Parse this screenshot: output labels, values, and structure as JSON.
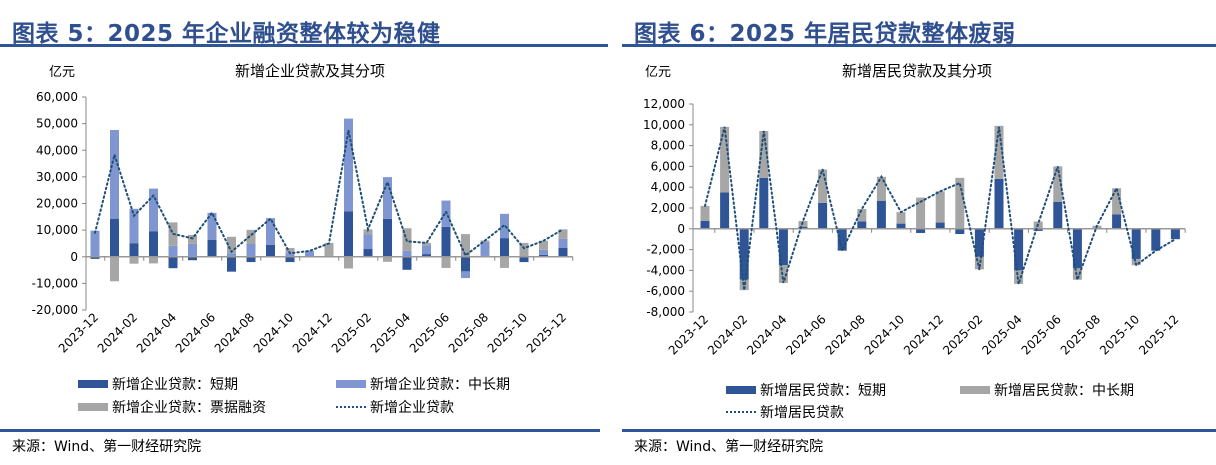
{
  "colors": {
    "short": "#2f5597",
    "mid": "#7f96d0",
    "bill": "#a6a6a6",
    "line": "#1f4e79",
    "title": "#2f4f8f"
  },
  "left": {
    "title": "图表 5：2025 年企业融资整体较为稳健",
    "source": "来源：Wind、第一财经研究院",
    "legend": [
      "新增企业贷款：短期",
      "新增企业贷款：中长期",
      "新增企业贷款：票据融资",
      "新增企业贷款"
    ]
  },
  "right": {
    "title": "图表 6：2025 年居民贷款整体疲弱",
    "source": "来源：Wind、第一财经研究院",
    "legend": [
      "新增居民贷款：短期",
      "新增居民贷款：中长期",
      "新增居民贷款"
    ]
  },
  "chart_data": [
    {
      "type": "bar",
      "stacked": true,
      "title": "新增企业贷款及其分项",
      "ylabel": "亿元",
      "ylim": [
        -20000,
        60000
      ],
      "yticks": [
        -20000,
        -10000,
        0,
        10000,
        20000,
        30000,
        40000,
        50000,
        60000
      ],
      "ytick_labels": [
        "-20,000",
        "-10,000",
        "0",
        "10,000",
        "20,000",
        "30,000",
        "40,000",
        "50,000",
        "60,000"
      ],
      "x": [
        "2023-12",
        "2024-01",
        "2024-02",
        "2024-03",
        "2024-04",
        "2024-05",
        "2024-06",
        "2024-07",
        "2024-08",
        "2024-09",
        "2024-10",
        "2024-11",
        "2024-12",
        "2025-01",
        "2025-02",
        "2025-03",
        "2025-04",
        "2025-05",
        "2025-06",
        "2025-07",
        "2025-08",
        "2025-09",
        "2025-10",
        "2025-11",
        "2025-12"
      ],
      "xtick_labels": [
        "2023-12",
        "2024-02",
        "2024-04",
        "2024-06",
        "2024-08",
        "2024-10",
        "2024-12",
        "2025-02",
        "2025-04",
        "2025-06",
        "2025-08",
        "2025-10",
        "2025-12"
      ],
      "legend_position": "bottom",
      "series": [
        {
          "name": "新增企业贷款：短期",
          "kind": "bar",
          "values": [
            -800,
            14300,
            5100,
            9600,
            -4300,
            -1300,
            6300,
            -5600,
            -2000,
            4500,
            -2000,
            0,
            300,
            17100,
            2900,
            14200,
            -4900,
            1000,
            11200,
            -5500,
            300,
            7000,
            -2000,
            700,
            3400
          ]
        },
        {
          "name": "新增企业贷款：中长期",
          "kind": "bar",
          "values": [
            9800,
            33300,
            12900,
            16000,
            4100,
            4900,
            10200,
            1200,
            4800,
            10000,
            1300,
            2200,
            0,
            34800,
            5600,
            15700,
            2200,
            3200,
            9900,
            -2500,
            5200,
            9100,
            0,
            1900,
            3300
          ]
        },
        {
          "name": "新增企业贷款：票据融资",
          "kind": "bar",
          "values": [
            0,
            -9200,
            -2600,
            -2500,
            8800,
            3300,
            0,
            6300,
            5300,
            0,
            2000,
            0,
            4900,
            -4400,
            1800,
            -1900,
            8500,
            1000,
            -4200,
            8500,
            600,
            -4200,
            5200,
            3400,
            3600
          ]
        },
        {
          "name": "新增企业贷款",
          "kind": "line",
          "values": [
            9000,
            38300,
            15400,
            23000,
            8600,
            6900,
            16500,
            1900,
            8100,
            14300,
            1300,
            2200,
            5000,
            47500,
            10300,
            28000,
            5800,
            5200,
            16900,
            500,
            6100,
            11900,
            3200,
            6000,
            10300
          ]
        }
      ]
    },
    {
      "type": "bar",
      "stacked": true,
      "title": "新增居民贷款及其分项",
      "ylabel": "亿元",
      "ylim": [
        -8000,
        12000
      ],
      "yticks": [
        -8000,
        -6000,
        -4000,
        -2000,
        0,
        2000,
        4000,
        6000,
        8000,
        10000,
        12000
      ],
      "ytick_labels": [
        "-8,000",
        "-6,000",
        "-4,000",
        "-2,000",
        "0",
        "2,000",
        "4,000",
        "6,000",
        "8,000",
        "10,000",
        "12,000"
      ],
      "x": [
        "2023-12",
        "2024-01",
        "2024-02",
        "2024-03",
        "2024-04",
        "2024-05",
        "2024-06",
        "2024-07",
        "2024-08",
        "2024-09",
        "2024-10",
        "2024-11",
        "2024-12",
        "2025-01",
        "2025-02",
        "2025-03",
        "2025-04",
        "2025-05",
        "2025-06",
        "2025-07",
        "2025-08",
        "2025-09",
        "2025-10",
        "2025-11",
        "2025-12"
      ],
      "xtick_labels": [
        "2023-12",
        "2024-02",
        "2024-04",
        "2024-06",
        "2024-08",
        "2024-10",
        "2024-12",
        "2025-02",
        "2025-04",
        "2025-06",
        "2025-08",
        "2025-10",
        "2025-12"
      ],
      "legend_position": "bottom",
      "series": [
        {
          "name": "新增居民贷款：短期",
          "kind": "bar",
          "values": [
            750,
            3500,
            -4900,
            4900,
            -3500,
            200,
            2500,
            -2100,
            700,
            2700,
            500,
            -400,
            600,
            -500,
            -2700,
            4800,
            -4000,
            -200,
            2600,
            -3800,
            50,
            1400,
            -2900,
            -2100,
            -1000
          ]
        },
        {
          "name": "新增居民贷款：中长期",
          "kind": "bar",
          "values": [
            1450,
            6300,
            -1000,
            4500,
            -1700,
            550,
            3200,
            0,
            1200,
            2300,
            1100,
            3000,
            3000,
            4900,
            -1200,
            5100,
            -1300,
            700,
            3400,
            -1100,
            250,
            2500,
            -600,
            0,
            0
          ]
        },
        {
          "name": "新增居民贷款",
          "kind": "line",
          "values": [
            2200,
            9800,
            -5900,
            9400,
            -5200,
            750,
            5700,
            -2100,
            1900,
            5000,
            1600,
            2600,
            3600,
            4400,
            -3900,
            9800,
            -5300,
            500,
            6000,
            -4900,
            300,
            3900,
            -3500,
            -2100,
            -1000
          ]
        }
      ]
    }
  ]
}
